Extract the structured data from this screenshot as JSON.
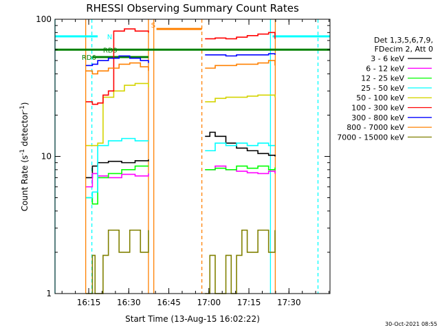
{
  "chart_data": {
    "type": "line",
    "title": "RHESSI Observing Summary Count Rates",
    "xlabel": "Start Time (13-Aug-15 16:02:22)",
    "ylabel_base": "Count Rate (s",
    "ylabel_exp": "-1",
    "ylabel_tail": " detector",
    "ylabel_close": ")",
    "yscale": "log",
    "ylim": [
      1,
      100
    ],
    "xlim_minutes": [
      0,
      103
    ],
    "x_ticks": [
      {
        "label": "16:15",
        "min": 12.63
      },
      {
        "label": "16:30",
        "min": 27.63
      },
      {
        "label": "16:45",
        "min": 42.63
      },
      {
        "label": "17:00",
        "min": 57.63
      },
      {
        "label": "17:15",
        "min": 72.63
      },
      {
        "label": "17:30",
        "min": 87.63
      }
    ],
    "y_ticks": [
      {
        "label": "1",
        "value": 1
      },
      {
        "label": "10",
        "value": 10
      },
      {
        "label": "100",
        "value": 100
      }
    ],
    "legend": {
      "placement": "right",
      "header1": "Det 1,3,5,6,7,9,",
      "header2": "FDecim 2, Att 0",
      "entries": [
        {
          "label": "3 - 6 keV",
          "color": "#000000"
        },
        {
          "label": "6 - 12 keV",
          "color": "#ff00ff"
        },
        {
          "label": "12 - 25 keV",
          "color": "#00ff00"
        },
        {
          "label": "25 - 50 keV",
          "color": "#00ffff"
        },
        {
          "label": "50 - 100 keV",
          "color": "#d4d400"
        },
        {
          "label": "100 - 300 keV",
          "color": "#ff0000"
        },
        {
          "label": "300 - 800 keV",
          "color": "#0000ff"
        },
        {
          "label": "800 - 7000 keV",
          "color": "#ff8000"
        },
        {
          "label": "7000 - 15000 keV",
          "color": "#808000"
        }
      ]
    },
    "annotations": {
      "N": "N",
      "S": "S",
      "RD9": "RD9",
      "RD6": "RD6"
    },
    "intervals": [
      {
        "start": 11.5,
        "end": 35.0
      },
      {
        "start": 56.0,
        "end": 82.5
      }
    ],
    "series": [
      {
        "name": "3 - 6 keV",
        "color": "#000000",
        "segments": [
          {
            "x": [
              11.6,
              14.0,
              16.0,
              20.0,
              25.0,
              30.0,
              35.0
            ],
            "y": [
              7.0,
              8.5,
              9.0,
              9.2,
              9.0,
              9.3,
              9.5
            ]
          },
          {
            "x": [
              56.2,
              58.0,
              60.0,
              64.0,
              68.0,
              72.0,
              76.0,
              80.0,
              82.4
            ],
            "y": [
              14.0,
              15.0,
              14.0,
              12.5,
              11.5,
              11.0,
              10.5,
              10.2,
              10.0
            ]
          }
        ]
      },
      {
        "name": "6 - 12 keV",
        "color": "#ff00ff",
        "segments": [
          {
            "x": [
              11.6,
              14.0,
              16.0,
              20.0,
              25.0,
              30.0,
              35.0
            ],
            "y": [
              6.0,
              7.5,
              7.2,
              7.0,
              7.4,
              7.2,
              7.5
            ]
          },
          {
            "x": [
              56.2,
              60.0,
              64.0,
              68.0,
              72.0,
              76.0,
              80.0,
              82.4
            ],
            "y": [
              8.0,
              8.5,
              8.0,
              7.8,
              7.6,
              7.5,
              7.8,
              7.5
            ]
          }
        ]
      },
      {
        "name": "12 - 25 keV",
        "color": "#00ff00",
        "segments": [
          {
            "x": [
              11.6,
              14.0,
              16.0,
              20.0,
              25.0,
              30.0,
              35.0
            ],
            "y": [
              5.0,
              4.5,
              7.0,
              7.5,
              8.0,
              8.5,
              8.5
            ]
          },
          {
            "x": [
              56.2,
              60.0,
              64.0,
              68.0,
              72.0,
              76.0,
              80.0,
              82.4
            ],
            "y": [
              8.0,
              8.2,
              8.0,
              8.5,
              8.2,
              8.5,
              8.0,
              8.3
            ]
          }
        ]
      },
      {
        "name": "25 - 50 keV",
        "color": "#00ffff",
        "segments": [
          {
            "x": [
              11.6,
              14.0,
              16.0,
              20.0,
              25.0,
              30.0,
              35.0
            ],
            "y": [
              5.0,
              5.5,
              12.0,
              13.0,
              13.5,
              13.0,
              13.0
            ]
          },
          {
            "x": [
              56.2,
              60.0,
              64.0,
              68.0,
              72.0,
              76.0,
              80.0,
              82.4
            ],
            "y": [
              11.0,
              12.5,
              12.0,
              12.5,
              12.0,
              12.5,
              12.0,
              12.0
            ]
          }
        ]
      },
      {
        "name": "50 - 100 keV",
        "color": "#d4d400",
        "segments": [
          {
            "x": [
              11.6,
              14.0,
              16.0,
              18.0,
              22.0,
              26.0,
              30.0,
              35.0
            ],
            "y": [
              12.0,
              12.0,
              12.5,
              27.0,
              30.0,
              33.0,
              34.0,
              32.0
            ]
          },
          {
            "x": [
              56.2,
              60.0,
              64.0,
              68.0,
              72.0,
              76.0,
              80.0,
              82.4
            ],
            "y": [
              25.0,
              26.5,
              27.0,
              27.0,
              27.5,
              28.0,
              28.0,
              27.0
            ]
          }
        ]
      },
      {
        "name": "100 - 300 keV",
        "color": "#ff0000",
        "segments": [
          {
            "x": [
              11.6,
              14.0,
              16.0,
              18.0,
              20.0,
              22.0,
              26.0,
              30.0,
              35.0
            ],
            "y": [
              25.0,
              24.0,
              24.5,
              28.0,
              30.0,
              82.0,
              85.0,
              82.0,
              80.0
            ]
          },
          {
            "x": [
              56.2,
              60.0,
              64.0,
              68.0,
              72.0,
              76.0,
              80.0,
              82.4
            ],
            "y": [
              72.0,
              73.0,
              72.0,
              74.0,
              76.0,
              78.0,
              80.0,
              72.0
            ]
          }
        ]
      },
      {
        "name": "300 - 800 keV",
        "color": "#0000ff",
        "segments": [
          {
            "x": [
              11.6,
              14.0,
              16.0,
              20.0,
              24.0,
              28.0,
              32.0,
              35.0
            ],
            "y": [
              46.0,
              47.0,
              50.0,
              52.0,
              54.0,
              52.0,
              50.0,
              48.0
            ]
          },
          {
            "x": [
              56.2,
              60.0,
              64.0,
              68.0,
              72.0,
              76.0,
              80.0,
              82.4
            ],
            "y": [
              55.0,
              55.0,
              54.0,
              55.0,
              55.0,
              55.0,
              56.0,
              55.0
            ]
          }
        ]
      },
      {
        "name": "800 - 7000 keV",
        "color": "#ff8000",
        "segments": [
          {
            "x": [
              11.6,
              14.0,
              16.0,
              20.0,
              24.0,
              28.0,
              32.0,
              35.0
            ],
            "y": [
              42.0,
              40.0,
              42.0,
              44.0,
              47.0,
              48.0,
              45.0,
              42.0
            ]
          },
          {
            "x": [
              56.2,
              60.0,
              64.0,
              68.0,
              72.0,
              76.0,
              80.0,
              82.4
            ],
            "y": [
              44.0,
              46.0,
              46.0,
              47.0,
              47.0,
              48.0,
              50.0,
              46.0
            ]
          }
        ]
      },
      {
        "name": "7000 - 15000 keV",
        "color": "#808000",
        "segments": [
          {
            "x": [
              11.6,
              14.0,
              15.0,
              18.0,
              20.0,
              24.0,
              28.0,
              32.0,
              35.0
            ],
            "y": [
              1.0,
              1.9,
              1.0,
              1.9,
              2.9,
              2.0,
              2.9,
              2.0,
              2.9
            ]
          },
          {
            "x": [
              56.2,
              58.0,
              60.0,
              64.0,
              66.0,
              68.0,
              70.0,
              72.0,
              76.0,
              80.0,
              82.4
            ],
            "y": [
              1.0,
              1.9,
              1.0,
              1.9,
              1.0,
              1.9,
              2.9,
              2.0,
              2.9,
              2.0,
              2.9
            ]
          }
        ]
      }
    ],
    "flags": [
      {
        "name": "N",
        "color": "#00ffff",
        "level": 75,
        "segments": [
          [
            0,
            16.0
          ],
          [
            81.5,
            103
          ]
        ]
      },
      {
        "name": "S",
        "color": "#ff8000",
        "level": 85,
        "segments": [
          [
            38.0,
            55.0
          ]
        ]
      },
      {
        "name": "RD9",
        "color": "#008000",
        "level": 60,
        "segments": [
          [
            0,
            103
          ]
        ]
      },
      {
        "name": "RD6",
        "color": "#008000",
        "level": 53,
        "segments": [
          [
            14.0,
            35.0
          ]
        ]
      }
    ],
    "vlines": [
      {
        "min": 0.0,
        "color": "#00ffff",
        "dash": false
      },
      {
        "min": 13.8,
        "color": "#00ffff",
        "dash": true
      },
      {
        "min": 11.5,
        "color": "#ff8000",
        "dash": false
      },
      {
        "min": 35.0,
        "color": "#ff8000",
        "dash": false
      },
      {
        "min": 37.0,
        "color": "#ff8000",
        "dash": false
      },
      {
        "min": 55.0,
        "color": "#ff8000",
        "dash": true
      },
      {
        "min": 82.5,
        "color": "#ff8000",
        "dash": false
      },
      {
        "min": 80.7,
        "color": "#00ffff",
        "dash": false
      },
      {
        "min": 98.5,
        "color": "#00ffff",
        "dash": true
      }
    ]
  },
  "footer": {
    "timestamp": "30-Oct-2021 08:55"
  }
}
